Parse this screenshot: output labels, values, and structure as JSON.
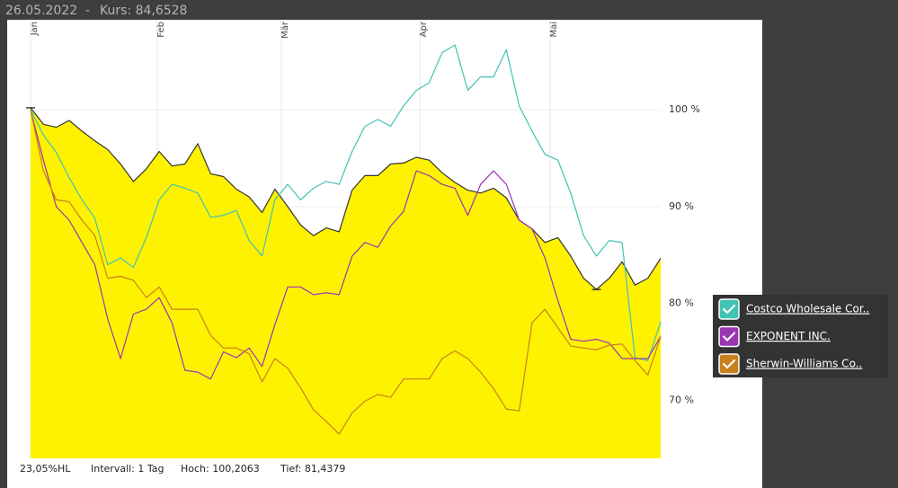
{
  "header": {
    "date": "26.05.2022",
    "separator": "-",
    "quote": "Kurs: 84,6528"
  },
  "chart_data": {
    "type": "line",
    "xlim": [
      0,
      49
    ],
    "xticks": [
      {
        "value": 0,
        "label": "Jan"
      },
      {
        "value": 9.86,
        "label": "Feb"
      },
      {
        "value": 19.5,
        "label": "Mär"
      },
      {
        "value": 30.27,
        "label": "Apr"
      },
      {
        "value": 40.4,
        "label": "Mai"
      }
    ],
    "ylim": [
      64,
      109.3
    ],
    "yticks": [
      {
        "value": 70,
        "label": "70 %"
      },
      {
        "value": 80,
        "label": "80 %"
      },
      {
        "value": 90,
        "label": "90 %"
      },
      {
        "value": 100,
        "label": "100 %"
      }
    ],
    "grid": true,
    "series": [
      {
        "color": "#333333",
        "fill": "#fff200",
        "values": [
          100.21,
          98.5,
          98.2,
          98.9,
          97.8,
          96.8,
          95.9,
          94.4,
          92.6,
          93.9,
          95.7,
          94.2,
          94.4,
          96.5,
          93.4,
          93.1,
          91.8,
          91.0,
          89.4,
          91.8,
          90.0,
          88.1,
          87.0,
          87.8,
          87.4,
          91.7,
          93.2,
          93.2,
          94.4,
          94.5,
          95.1,
          94.8,
          93.5,
          92.5,
          91.7,
          91.4,
          91.9,
          90.9,
          88.6,
          87.7,
          86.3,
          86.8,
          84.9,
          82.6,
          81.44,
          82.6,
          84.3,
          81.9,
          82.6,
          84.65
        ]
      },
      {
        "name": "Costco Wholesale Cor..",
        "color": "#3fc3b4",
        "values": [
          100,
          97.4,
          95.6,
          93.0,
          90.7,
          88.8,
          84.0,
          84.7,
          83.7,
          86.8,
          90.7,
          92.3,
          91.9,
          91.4,
          88.9,
          89.1,
          89.6,
          86.5,
          84.9,
          90.7,
          92.3,
          90.7,
          91.9,
          92.6,
          92.3,
          95.7,
          98.3,
          99.0,
          98.3,
          100.4,
          102.0,
          102.8,
          105.9,
          106.7,
          102.0,
          103.4,
          103.4,
          106.2,
          100.4,
          97.8,
          95.4,
          94.8,
          91.4,
          87.0,
          84.9,
          86.5,
          86.3,
          74.4,
          74.1,
          78.1
        ]
      },
      {
        "name": "EXPONENT INC.",
        "color": "#9b35b0",
        "values": [
          100,
          94.8,
          90.0,
          88.6,
          86.3,
          84.0,
          78.4,
          74.3,
          78.9,
          79.4,
          80.6,
          78.0,
          73.1,
          72.9,
          72.2,
          75.0,
          74.4,
          75.4,
          73.5,
          77.8,
          81.7,
          81.7,
          80.9,
          81.1,
          80.9,
          84.9,
          86.3,
          85.8,
          88.0,
          89.5,
          93.7,
          93.2,
          92.3,
          91.9,
          89.1,
          92.3,
          93.7,
          92.3,
          88.6,
          87.7,
          84.7,
          80.3,
          76.3,
          76.1,
          76.3,
          75.9,
          74.3,
          74.3,
          74.3,
          76.6
        ]
      },
      {
        "name": "Sherwin-Williams Co..",
        "color": "#c9801e",
        "values": [
          100,
          93.7,
          90.7,
          90.5,
          88.6,
          87.0,
          82.6,
          82.8,
          82.4,
          80.6,
          81.7,
          79.4,
          79.4,
          79.4,
          76.7,
          75.4,
          75.4,
          74.8,
          71.9,
          74.3,
          73.3,
          71.3,
          69.0,
          67.8,
          66.5,
          68.7,
          69.9,
          70.6,
          70.3,
          72.2,
          72.2,
          72.2,
          74.3,
          75.1,
          74.3,
          72.9,
          71.2,
          69.1,
          68.9,
          78.0,
          79.4,
          77.5,
          75.6,
          75.4,
          75.2,
          75.7,
          75.8,
          74.1,
          72.6,
          76.6
        ]
      }
    ]
  },
  "footer": {
    "range": "23,05%HL",
    "interval": "Intervall: 1 Tag",
    "high": "Hoch: 100,2063",
    "low": "Tief: 81,4379"
  }
}
